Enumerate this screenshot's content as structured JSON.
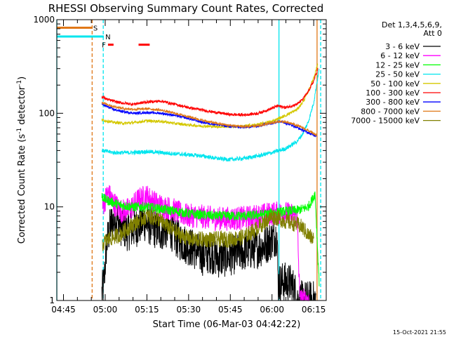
{
  "chart_data": {
    "type": "line",
    "title": "RHESSI Observing Summary Count Rates, Corrected",
    "xlabel": "Start Time (06-Mar-03 04:42:22)",
    "ylabel": "Corrected Count Rate (s⁻¹ detector⁻¹)",
    "ylabel_main": "Corrected Count Rate (s",
    "ylabel_sup1": "-1",
    "ylabel_mid": " detector",
    "ylabel_sup2": "-1",
    "ylabel_end": ")",
    "y_scale": "log",
    "ylim": [
      1,
      1000
    ],
    "xlim_minutes": [
      -2.4,
      94.5
    ],
    "x_ticks": [
      {
        "label": "04:45",
        "minutes": 0
      },
      {
        "label": "05:00",
        "minutes": 15
      },
      {
        "label": "05:15",
        "minutes": 30
      },
      {
        "label": "05:30",
        "minutes": 45
      },
      {
        "label": "05:45",
        "minutes": 60
      },
      {
        "label": "06:00",
        "minutes": 75
      },
      {
        "label": "06:15",
        "minutes": 90
      }
    ],
    "y_ticks": [
      {
        "label": "1",
        "value": 1
      },
      {
        "label": "10",
        "value": 10
      },
      {
        "label": "100",
        "value": 100
      },
      {
        "label": "1000",
        "value": 1000
      }
    ],
    "legend_title_1": "Det 1,3,4,5,6,9,",
    "legend_title_2": "Att 0",
    "legend_position": "right",
    "footer_date": "15-Oct-2021 21:55",
    "flags": [
      {
        "label": "S",
        "color": "#e07818",
        "start": -2.4,
        "end": 10.5,
        "level": 820,
        "label_at": 11.5
      },
      {
        "label": "N",
        "color": "#00e5ee",
        "start": -2.4,
        "end": 14.5,
        "level": 660,
        "label_at": 16
      },
      {
        "label": "F",
        "color": "#ff0000",
        "start": 16,
        "end": 18,
        "level": 540,
        "label_at": 14.5
      },
      {
        "label": "",
        "color": "#ff0000",
        "start": 27,
        "end": 31,
        "level": 540,
        "label_at": 0
      }
    ],
    "orbit_lines": [
      {
        "minutes": -2.4,
        "color": "#00e5ee",
        "style": "solid"
      },
      {
        "minutes": 10.3,
        "color": "#e07818",
        "style": "dashed"
      },
      {
        "minutes": 14.3,
        "color": "#00e5ee",
        "style": "dashed"
      },
      {
        "minutes": 77.5,
        "color": "#00e5ee",
        "style": "solid"
      },
      {
        "minutes": 91.2,
        "color": "#e07818",
        "style": "solid"
      },
      {
        "minutes": 92.5,
        "color": "#00e5ee",
        "style": "dashed"
      }
    ],
    "series": [
      {
        "name": "3 - 6 keV",
        "color": "#000000",
        "noise": 0.5,
        "min": 1,
        "x_start": 13.8,
        "x_end": 90.8,
        "x": [
          13.8,
          14.5,
          15.5,
          17,
          19,
          21,
          23,
          26,
          29,
          32,
          35,
          38,
          41,
          44,
          47,
          50,
          53,
          56,
          60,
          64,
          68,
          72,
          75,
          76.8,
          77.2,
          79,
          82,
          83.5,
          84,
          86,
          88,
          90.8
        ],
        "values": [
          1.2,
          1.5,
          4,
          6.5,
          7.5,
          6,
          5.5,
          6,
          7,
          6,
          5.5,
          6,
          4.5,
          4,
          3.5,
          3,
          3.2,
          2.8,
          3,
          3.3,
          3.5,
          3.8,
          4.5,
          5,
          1.5,
          1.6,
          1.5,
          1.2,
          1,
          1,
          1,
          1
        ]
      },
      {
        "name": "6 - 12 keV",
        "color": "#ff00ff",
        "noise": 0.3,
        "min": 1,
        "x_start": 14,
        "x_end": 88.5,
        "x": [
          14,
          15,
          16,
          18,
          21,
          24,
          27,
          30,
          33,
          36,
          39,
          42,
          45,
          48,
          51,
          55,
          60,
          65,
          70,
          75,
          80,
          84,
          85,
          88.5
        ],
        "values": [
          10,
          12,
          14,
          11,
          9,
          9.5,
          12,
          13,
          11,
          10,
          9.5,
          8.5,
          8,
          8,
          7.8,
          7.5,
          7.5,
          7.6,
          8,
          8.5,
          8.5,
          8,
          1,
          1
        ]
      },
      {
        "name": "12 - 25 keV",
        "color": "#00ff00",
        "noise": 0.12,
        "min": 1,
        "x_start": 13.8,
        "x_end": 92,
        "x": [
          13.8,
          15,
          20,
          25,
          30,
          35,
          40,
          45,
          50,
          55,
          60,
          65,
          70,
          75,
          80,
          84,
          86,
          88,
          89.5,
          90.5,
          91.5,
          92
        ],
        "values": [
          13,
          12,
          10.5,
          10,
          10,
          9.5,
          9,
          8.5,
          8.2,
          8,
          8,
          8,
          8.2,
          8.6,
          9,
          9.2,
          9.5,
          10,
          12,
          14,
          3,
          1.5
        ]
      },
      {
        "name": "25 - 50 keV",
        "color": "#00e5ee",
        "noise": 0.05,
        "min": 1,
        "x_start": 13.8,
        "x_end": 92,
        "x": [
          13.8,
          18,
          25,
          30,
          35,
          40,
          45,
          50,
          55,
          60,
          65,
          70,
          75,
          80,
          84,
          86,
          88,
          90,
          91,
          92
        ],
        "values": [
          40,
          38,
          38,
          39,
          38,
          37,
          36,
          35,
          33,
          32,
          33,
          35,
          38,
          42,
          50,
          60,
          80,
          130,
          200,
          300
        ]
      },
      {
        "name": "50 - 100 keV",
        "color": "#d4c800",
        "noise": 0.035,
        "min": 1,
        "x_start": 13.8,
        "x_end": 91.5,
        "x": [
          13.8,
          18,
          22,
          26,
          30,
          35,
          40,
          45,
          50,
          55,
          60,
          65,
          70,
          75,
          80,
          84,
          86,
          88,
          90,
          91.5
        ],
        "values": [
          85,
          80,
          78,
          80,
          83,
          82,
          78,
          75,
          73,
          72,
          72,
          73,
          76,
          82,
          95,
          110,
          130,
          170,
          240,
          340
        ]
      },
      {
        "name": "100 - 300 keV",
        "color": "#ff0000",
        "noise": 0.035,
        "min": 1,
        "x_start": 13.8,
        "x_end": 91.5,
        "x": [
          13.8,
          16,
          20,
          25,
          30,
          35,
          40,
          45,
          50,
          55,
          60,
          65,
          70,
          74,
          77,
          80,
          84,
          86,
          88,
          90,
          91.5
        ],
        "values": [
          150,
          140,
          130,
          125,
          132,
          135,
          125,
          115,
          108,
          102,
          97,
          96,
          100,
          110,
          120,
          115,
          125,
          140,
          170,
          220,
          300
        ]
      },
      {
        "name": "300 - 800 keV",
        "color": "#0000ff",
        "noise": 0.03,
        "min": 1,
        "x_start": 13.8,
        "x_end": 91,
        "x": [
          13.8,
          18,
          22,
          26,
          30,
          35,
          40,
          45,
          50,
          55,
          60,
          65,
          70,
          74,
          78,
          82,
          86,
          89,
          91
        ],
        "values": [
          125,
          110,
          103,
          100,
          102,
          100,
          95,
          88,
          80,
          76,
          72,
          71,
          73,
          78,
          82,
          75,
          66,
          60,
          58
        ]
      },
      {
        "name": "800 - 7000 keV",
        "color": "#e07818",
        "noise": 0.03,
        "min": 1,
        "x_start": 13.8,
        "x_end": 91,
        "x": [
          13.8,
          18,
          22,
          26,
          30,
          35,
          40,
          45,
          50,
          55,
          60,
          65,
          70,
          74,
          78,
          82,
          86,
          89,
          91
        ],
        "values": [
          130,
          118,
          112,
          110,
          112,
          108,
          100,
          92,
          84,
          78,
          74,
          72,
          73,
          78,
          82,
          78,
          70,
          63,
          58
        ]
      },
      {
        "name": "7000 - 15000 keV",
        "color": "#808000",
        "noise": 0.2,
        "min": 1,
        "x_start": 14,
        "x_end": 90,
        "x": [
          14,
          16,
          20,
          25,
          30,
          34,
          38,
          42,
          46,
          50,
          55,
          60,
          65,
          70,
          75,
          80,
          84,
          86,
          88,
          90
        ],
        "values": [
          4,
          4.5,
          5,
          6.5,
          8,
          7.5,
          6,
          5,
          4.5,
          4.5,
          4.5,
          4.5,
          4.8,
          6,
          8,
          7,
          6.5,
          6,
          5,
          4.5
        ]
      }
    ]
  }
}
